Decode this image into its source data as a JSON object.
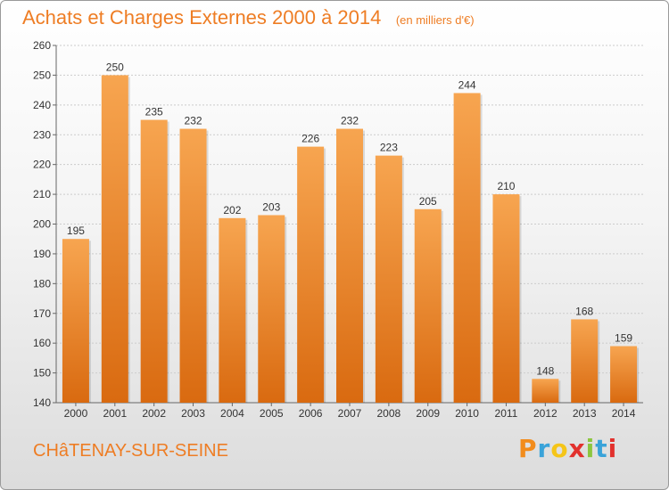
{
  "header": {
    "title": "Achats et Charges Externes 2000 à 2014",
    "subtitle": "(en milliers d'€)"
  },
  "footer": {
    "commune": "CHâTENAY-SUR-SEINE",
    "brand": {
      "letters": [
        "P",
        "r",
        "o",
        "x",
        "i",
        "t",
        "i"
      ],
      "colors": [
        "#f28c1c",
        "#3aa3d9",
        "#f5c518",
        "#e2312d",
        "#8cc63f",
        "#3aa3d9",
        "#e2312d"
      ]
    }
  },
  "chart_data": {
    "type": "bar",
    "categories": [
      "2000",
      "2001",
      "2002",
      "2003",
      "2004",
      "2005",
      "2006",
      "2007",
      "2008",
      "2009",
      "2010",
      "2011",
      "2012",
      "2013",
      "2014"
    ],
    "values": [
      195,
      250,
      235,
      232,
      202,
      203,
      226,
      232,
      223,
      205,
      244,
      210,
      148,
      168,
      159
    ],
    "ylim": [
      140,
      260
    ],
    "yticks": [
      140,
      150,
      160,
      170,
      180,
      190,
      200,
      210,
      220,
      230,
      240,
      250,
      260
    ],
    "grid": true,
    "colors": {
      "bar_light": "#f7a550",
      "bar_dark": "#d96a10",
      "grid": "#cccccc",
      "axis": "#666666"
    }
  }
}
